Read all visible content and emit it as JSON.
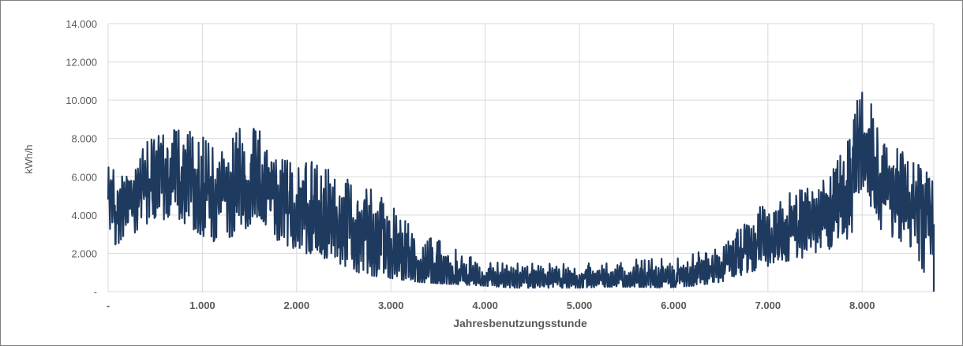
{
  "chart_data": {
    "type": "line",
    "title": "",
    "xlabel": "Jahresbenutzungsstunde",
    "ylabel": "kWh/h",
    "xlim": [
      0,
      8760
    ],
    "ylim": [
      0,
      14000
    ],
    "x_ticks": [
      0,
      1000,
      2000,
      3000,
      4000,
      5000,
      6000,
      7000,
      8000
    ],
    "x_tick_labels": [
      "-",
      "1.000",
      "2.000",
      "3.000",
      "4.000",
      "5.000",
      "6.000",
      "7.000",
      "8.000"
    ],
    "y_ticks": [
      0,
      2000,
      4000,
      6000,
      8000,
      10000,
      12000,
      14000
    ],
    "y_tick_labels": [
      "-",
      "2.000",
      "4.000",
      "6.000",
      "8.000",
      "10.000",
      "12.000",
      "14.000"
    ],
    "grid": true,
    "legend": "none",
    "series_color": "#1f3a5f",
    "envelope": {
      "x": [
        0,
        200,
        500,
        800,
        1100,
        1400,
        1600,
        1800,
        2100,
        2400,
        2700,
        3000,
        3300,
        3600,
        4000,
        4300,
        4600,
        5000,
        5300,
        5600,
        5900,
        6200,
        6500,
        6800,
        7100,
        7400,
        7700,
        7900,
        8000,
        8200,
        8500,
        8760
      ],
      "min": [
        2100,
        2800,
        3800,
        3600,
        2600,
        3000,
        4000,
        2600,
        2000,
        1600,
        900,
        700,
        500,
        400,
        300,
        200,
        200,
        200,
        250,
        250,
        200,
        300,
        500,
        1000,
        1500,
        1800,
        2200,
        3000,
        5000,
        3000,
        2400,
        0
      ],
      "max": [
        6500,
        6000,
        8700,
        8800,
        7800,
        8700,
        8800,
        7000,
        7200,
        6200,
        5600,
        4800,
        3200,
        2500,
        1500,
        1600,
        1500,
        1500,
        1500,
        1700,
        1800,
        2000,
        2300,
        4000,
        5100,
        5500,
        6500,
        8700,
        11500,
        8200,
        7000,
        6000
      ],
      "mean": [
        4500,
        4600,
        6200,
        6000,
        5000,
        5500,
        5800,
        4600,
        4200,
        3600,
        3000,
        2200,
        1400,
        1000,
        700,
        700,
        650,
        650,
        700,
        700,
        700,
        900,
        1300,
        2300,
        3100,
        3500,
        4300,
        5500,
        8000,
        5200,
        4700,
        4200
      ]
    }
  }
}
